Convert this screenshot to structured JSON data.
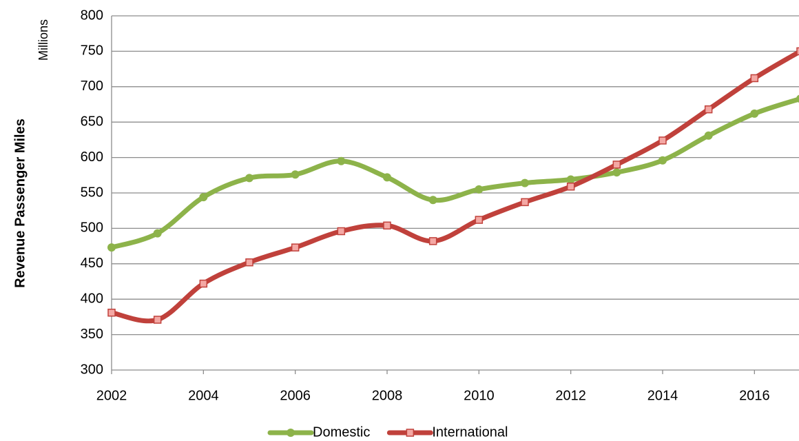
{
  "chart_data": {
    "type": "line",
    "y_label": "Revenue Passenger Miles",
    "unit_label": "Millions",
    "x": [
      2002,
      2003,
      2004,
      2005,
      2006,
      2007,
      2008,
      2009,
      2010,
      2011,
      2012,
      2013,
      2014,
      2015,
      2016,
      2017
    ],
    "series": [
      {
        "name": "Domestic",
        "color": "#8db34a",
        "marker": "circle",
        "values": [
          473,
          493,
          544,
          571,
          576,
          595,
          572,
          540,
          555,
          564,
          569,
          579,
          596,
          631,
          662,
          683
        ]
      },
      {
        "name": "International",
        "color": "#c0413b",
        "marker": "square",
        "values": [
          381,
          371,
          422,
          452,
          473,
          496,
          504,
          482,
          512,
          537,
          559,
          590,
          624,
          668,
          712,
          750
        ]
      }
    ],
    "xlim": [
      2002,
      2017
    ],
    "xticks": [
      2002,
      2004,
      2006,
      2008,
      2010,
      2012,
      2014,
      2016
    ],
    "ylim": [
      300,
      800
    ],
    "yticks": [
      300,
      350,
      400,
      450,
      500,
      550,
      600,
      650,
      700,
      750,
      800
    ],
    "grid": true,
    "legend": "bottom"
  }
}
